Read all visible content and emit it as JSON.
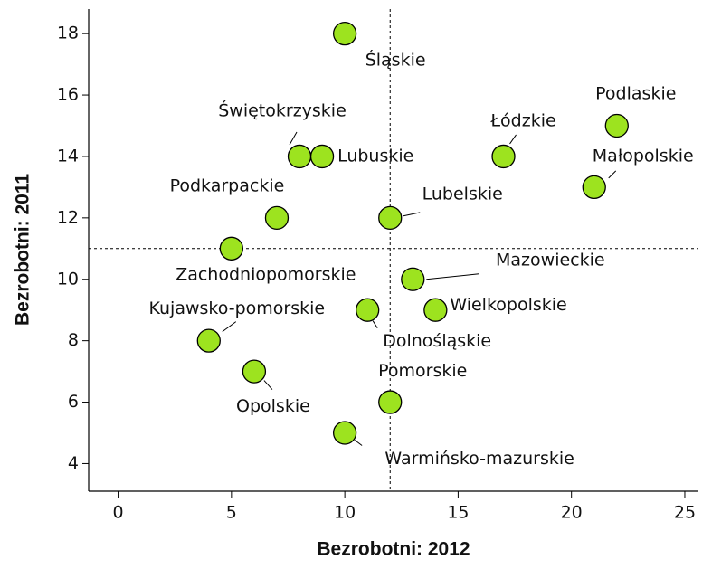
{
  "chart_data": {
    "type": "scatter",
    "x_label": "Bezrobotni: 2012",
    "y_label": "Bezrobotni: 2011",
    "labels": [
      "Śląskie",
      "Podlaskie",
      "Łódzkie",
      "Świętokrzyskie",
      "Lubuskie",
      "Małopolskie",
      "Podkarpackie",
      "Lubelskie",
      "Zachodniopomorskie",
      "Mazowieckie",
      "Kujawsko-pomorskie",
      "Dolnośląskie",
      "Wielkopolskie",
      "Opolskie",
      "Pomorskie",
      "Warmińsko-mazurskie"
    ],
    "x": [
      10,
      22,
      17,
      8,
      9,
      21,
      7,
      12,
      5,
      13,
      4,
      11,
      14,
      6,
      12,
      10
    ],
    "y": [
      18,
      15,
      14,
      14,
      14,
      13,
      12,
      12,
      11,
      10,
      8,
      9,
      9,
      7,
      6,
      5
    ],
    "color": "#9de31f",
    "xlim": [
      -1.3,
      25.6
    ],
    "ylim": [
      3.1,
      18.8
    ],
    "xticks": [
      0,
      5,
      10,
      15,
      20,
      25
    ],
    "yticks": [
      4,
      6,
      8,
      10,
      12,
      14,
      16,
      18
    ],
    "reference_lines": {
      "x": 12,
      "y": 11
    },
    "grid": false
  }
}
